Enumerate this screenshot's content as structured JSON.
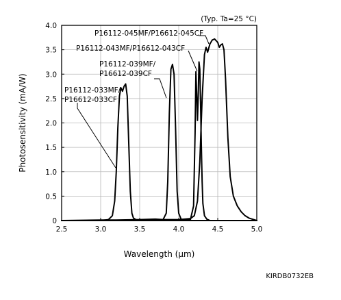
{
  "chart_data": {
    "type": "line",
    "title": "",
    "condition_note": "(Typ. Ta=25 °C)",
    "xlabel": "Wavelength (µm)",
    "ylabel": "Photosensitivity (mA/W)",
    "xlim": [
      2.5,
      5.0
    ],
    "ylim": [
      0,
      4.0
    ],
    "x_ticks": [
      "2.5",
      "3.0",
      "3.5",
      "4.0",
      "4.5",
      "5.0"
    ],
    "y_ticks": [
      "0",
      "0.5",
      "1.0",
      "1.5",
      "2.0",
      "2.5",
      "3.0",
      "3.5",
      "4.0"
    ],
    "grid": true,
    "legend": "none",
    "figure_code": "KIRDB0732EB",
    "series": [
      {
        "name": "P16112-033MF/P16612-033CF",
        "label_lines": [
          "P16112-033MF/",
          "P16612-033CF"
        ],
        "x": [
          2.5,
          3.0,
          3.1,
          3.15,
          3.18,
          3.2,
          3.22,
          3.24,
          3.26,
          3.28,
          3.3,
          3.32,
          3.34,
          3.36,
          3.38,
          3.4,
          3.42,
          3.45,
          3.5,
          4.0,
          5.0
        ],
        "y": [
          0.0,
          0.0,
          0.02,
          0.1,
          0.4,
          1.0,
          1.9,
          2.55,
          2.72,
          2.65,
          2.75,
          2.8,
          2.55,
          1.6,
          0.6,
          0.15,
          0.05,
          0.02,
          0.0,
          0.0,
          0.0
        ]
      },
      {
        "name": "P16112-039MF/P16612-039CF",
        "label_lines": [
          "P16112-039MF/",
          "P16612-039CF"
        ],
        "x": [
          2.5,
          3.5,
          3.8,
          3.84,
          3.86,
          3.88,
          3.9,
          3.92,
          3.94,
          3.96,
          3.98,
          4.0,
          4.03,
          4.1,
          5.0
        ],
        "y": [
          0.0,
          0.0,
          0.02,
          0.15,
          0.8,
          2.2,
          3.1,
          3.2,
          3.0,
          1.9,
          0.6,
          0.15,
          0.03,
          0.0,
          0.0
        ]
      },
      {
        "name": "P16112-043MF/P16612-043CF",
        "label_lines": [
          "P16112-043MF/P16612-043CF"
        ],
        "x": [
          2.5,
          3.8,
          4.15,
          4.19,
          4.21,
          4.22,
          4.23,
          4.24,
          4.25,
          4.26,
          4.27,
          4.28,
          4.29,
          4.3,
          4.31,
          4.33,
          4.36,
          4.4,
          5.0
        ],
        "y": [
          0.0,
          0.0,
          0.02,
          0.3,
          1.8,
          3.05,
          2.6,
          2.05,
          2.55,
          3.25,
          3.1,
          2.4,
          1.5,
          0.8,
          0.35,
          0.1,
          0.03,
          0.0,
          0.0
        ]
      },
      {
        "name": "P16112-045MF/P16612-045CF",
        "label_lines": [
          "P16112-045MF/P16612-045CF"
        ],
        "x": [
          2.5,
          3.0,
          3.2,
          3.5,
          3.7,
          3.8,
          4.0,
          4.15,
          4.2,
          4.24,
          4.27,
          4.3,
          4.33,
          4.35,
          4.37,
          4.4,
          4.43,
          4.46,
          4.5,
          4.52,
          4.54,
          4.56,
          4.58,
          4.6,
          4.63,
          4.66,
          4.7,
          4.75,
          4.8,
          4.85,
          4.9,
          5.0
        ],
        "y": [
          0.0,
          0.01,
          0.01,
          0.02,
          0.03,
          0.02,
          0.02,
          0.04,
          0.1,
          0.4,
          1.2,
          2.5,
          3.4,
          3.55,
          3.45,
          3.62,
          3.7,
          3.72,
          3.65,
          3.55,
          3.6,
          3.62,
          3.5,
          2.9,
          1.7,
          0.9,
          0.5,
          0.3,
          0.18,
          0.1,
          0.05,
          0.0
        ]
      }
    ]
  }
}
